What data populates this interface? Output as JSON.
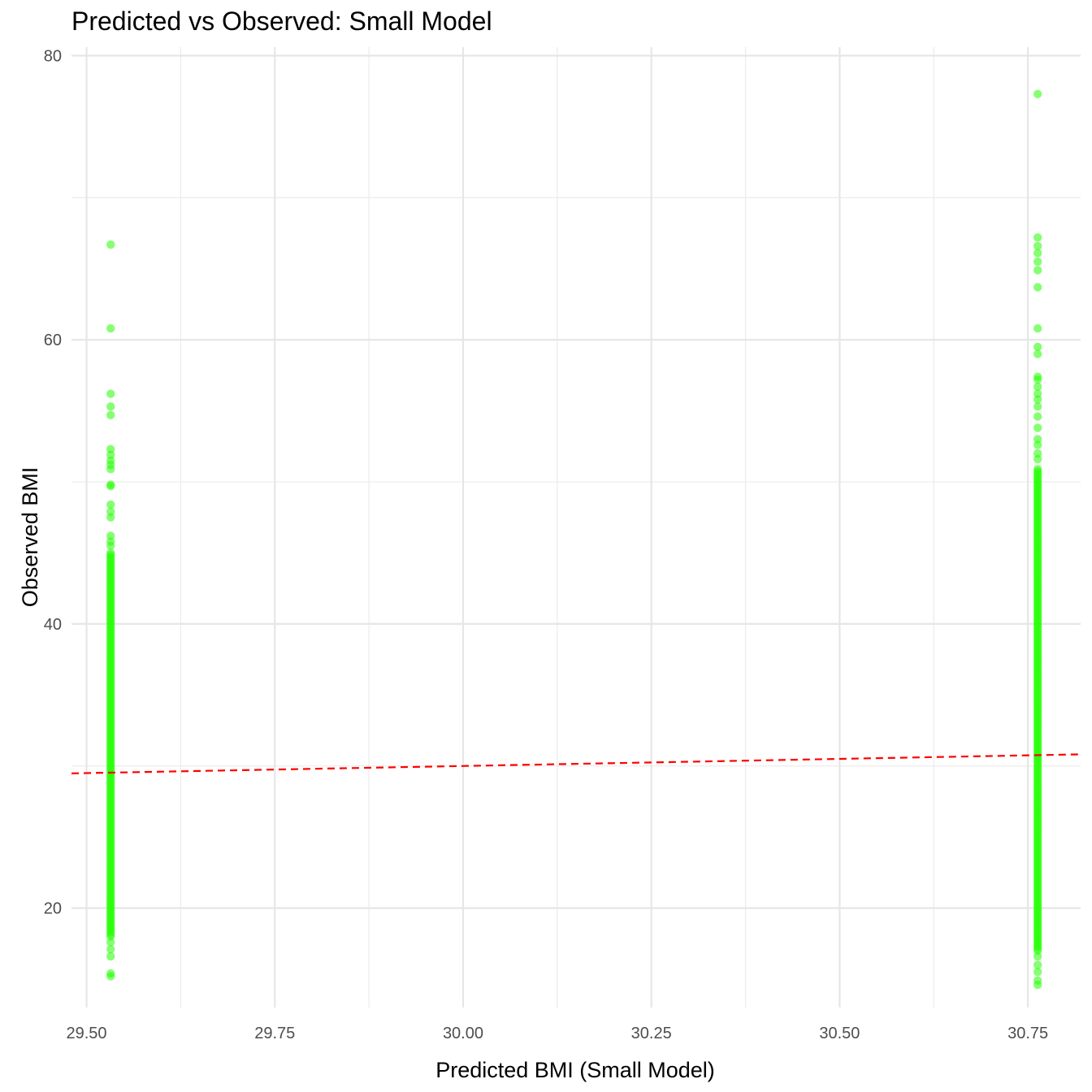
{
  "chart_data": {
    "type": "scatter",
    "title": "Predicted vs Observed: Small Model",
    "xlabel": "Predicted BMI (Small Model)",
    "ylabel": "Observed BMI",
    "xlim": [
      29.48,
      30.82
    ],
    "ylim": [
      13.0,
      80.6
    ],
    "x_ticks": [
      29.5,
      29.75,
      30.0,
      30.25,
      30.5,
      30.75
    ],
    "x_tick_labels": [
      "29.50",
      "29.75",
      "30.00",
      "30.25",
      "30.50",
      "30.75"
    ],
    "y_ticks": [
      20,
      40,
      60,
      80
    ],
    "y_tick_labels": [
      "20",
      "40",
      "60",
      "80"
    ],
    "grid": true,
    "point_color": "#22ff00",
    "point_alpha": 0.55,
    "series": [
      {
        "x": 29.532,
        "y_min": 18.0,
        "y_max": 45.0,
        "y_extra": [
          66.7,
          60.8,
          56.2,
          55.3,
          54.7,
          52.3,
          51.9,
          51.5,
          51.2,
          50.9,
          49.8,
          49.7,
          48.4,
          47.9,
          47.5,
          46.2,
          45.8,
          45.5,
          17.6,
          17.1,
          16.6,
          15.4,
          15.2
        ]
      },
      {
        "x": 30.763,
        "y_min": 17.0,
        "y_max": 51.0,
        "y_extra": [
          77.3,
          67.2,
          66.6,
          66.1,
          65.5,
          64.9,
          63.7,
          60.8,
          59.5,
          59.0,
          57.4,
          57.2,
          56.7,
          56.2,
          55.8,
          55.3,
          54.6,
          53.8,
          53.0,
          52.6,
          52.0,
          51.6,
          16.6,
          16.0,
          15.5,
          14.9,
          14.6
        ]
      }
    ],
    "reference_line": {
      "type": "identity",
      "color": "#ff0000",
      "dashed": true
    }
  }
}
